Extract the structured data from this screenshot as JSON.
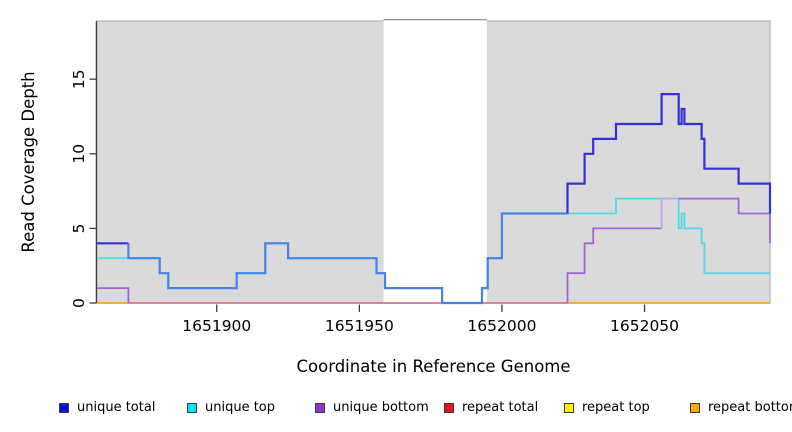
{
  "chart_data": {
    "type": "line",
    "subtype": "step-coverage-plot",
    "title": "",
    "xlabel": "Coordinate in Reference Genome",
    "ylabel": "Read Coverage Depth",
    "xlim": [
      1651858,
      1652094
    ],
    "ylim": [
      0,
      18.9
    ],
    "x_ticks": [
      1651900,
      1651950,
      1652000,
      1652050
    ],
    "y_ticks": [
      0,
      5,
      10,
      15
    ],
    "grid": "off",
    "plot_bg": "#DADADA",
    "plot_border": "#B5B5B5",
    "axis_color": "#3F3F3F",
    "highlight_band": {
      "x0": 1651958.5,
      "x1": 1651994.7,
      "fill": "#FFFFFF",
      "top_border": "#8F8F8F"
    },
    "series": [
      {
        "name": "repeat bottom",
        "parts": [
          {
            "color": "#FFA41E",
            "width": 1.8,
            "steps": [
              [
                1651858,
                0
              ]
            ],
            "end": 1651869
          },
          {
            "color": "#FFA41E",
            "width": 1.8,
            "steps": [
              [
                1652023,
                0
              ]
            ],
            "end": 1652094
          }
        ]
      },
      {
        "name": "repeat total",
        "parts": [
          {
            "color": "#D4607E",
            "width": 1.5,
            "steps": [
              [
                1651869,
                0
              ]
            ],
            "end": 1652023
          }
        ]
      },
      {
        "name": "unique top",
        "parts": [
          {
            "color": "#4FD9E6",
            "width": 1.8,
            "steps": [
              [
                1651858,
                3
              ],
              [
                1651880,
                2
              ],
              [
                1651883,
                1
              ],
              [
                1651907,
                2
              ],
              [
                1651917,
                4
              ],
              [
                1651925,
                3
              ],
              [
                1651956,
                2
              ],
              [
                1651959,
                1
              ],
              [
                1651979,
                0
              ],
              [
                1651993,
                1
              ],
              [
                1651995,
                3
              ],
              [
                1652000,
                6
              ],
              [
                1652040,
                7
              ],
              [
                1652062,
                5
              ],
              [
                1652063,
                6
              ],
              [
                1652064,
                5
              ],
              [
                1652070,
                4
              ],
              [
                1652071,
                2
              ]
            ],
            "end": 1652094
          }
        ]
      },
      {
        "name": "unique bottom",
        "parts": [
          {
            "color": "#A266D2",
            "width": 1.8,
            "steps": [
              [
                1651858,
                1
              ],
              [
                1651869,
                0
              ]
            ],
            "end": 1651869
          },
          {
            "color": "#A266D2",
            "width": 1.8,
            "steps": [
              [
                1652023,
                0
              ],
              [
                1652023,
                2
              ],
              [
                1652029,
                4
              ],
              [
                1652032,
                5
              ]
            ],
            "end": 1652056
          },
          {
            "color": "#C8A2E6",
            "width": 1.8,
            "steps": [
              [
                1652056,
                5
              ],
              [
                1652056,
                7
              ]
            ],
            "end": 1652062
          },
          {
            "color": "#A266D2",
            "width": 1.8,
            "steps": [
              [
                1652062,
                7
              ],
              [
                1652083,
                6
              ],
              [
                1652094,
                4
              ]
            ],
            "end": 1652094
          }
        ]
      },
      {
        "name": "unique total",
        "parts": [
          {
            "color": "#3232D4",
            "width": 2.2,
            "steps": [
              [
                1651858,
                4
              ]
            ],
            "end": 1651869
          },
          {
            "color": "#4583EA",
            "width": 2.2,
            "steps": [
              [
                1651869,
                4
              ],
              [
                1651869,
                3
              ],
              [
                1651880,
                2
              ],
              [
                1651883,
                1
              ],
              [
                1651907,
                2
              ],
              [
                1651917,
                4
              ],
              [
                1651925,
                3
              ],
              [
                1651956,
                2
              ],
              [
                1651959,
                1
              ],
              [
                1651979,
                0
              ],
              [
                1651993,
                1
              ],
              [
                1651995,
                3
              ],
              [
                1652000,
                6
              ]
            ],
            "end": 1652023
          },
          {
            "color": "#3232D4",
            "width": 2.2,
            "steps": [
              [
                1652023,
                6
              ],
              [
                1652023,
                8
              ],
              [
                1652029,
                10
              ],
              [
                1652032,
                11
              ],
              [
                1652040,
                12
              ],
              [
                1652056,
                14
              ],
              [
                1652062,
                12
              ],
              [
                1652063,
                13
              ],
              [
                1652064,
                12
              ],
              [
                1652070,
                11
              ],
              [
                1652071,
                9
              ],
              [
                1652083,
                8
              ],
              [
                1652094,
                6
              ]
            ],
            "end": 1652094
          }
        ]
      }
    ]
  },
  "legend": {
    "items": [
      {
        "label": "unique total",
        "color": "#0F0FE8"
      },
      {
        "label": "unique top",
        "color": "#00E5EE"
      },
      {
        "label": "unique bottom",
        "color": "#9932CC"
      },
      {
        "label": "repeat total",
        "color": "#E81414"
      },
      {
        "label": "repeat top",
        "color": "#FFF200"
      },
      {
        "label": "repeat bottom",
        "color": "#FFA500"
      }
    ]
  }
}
